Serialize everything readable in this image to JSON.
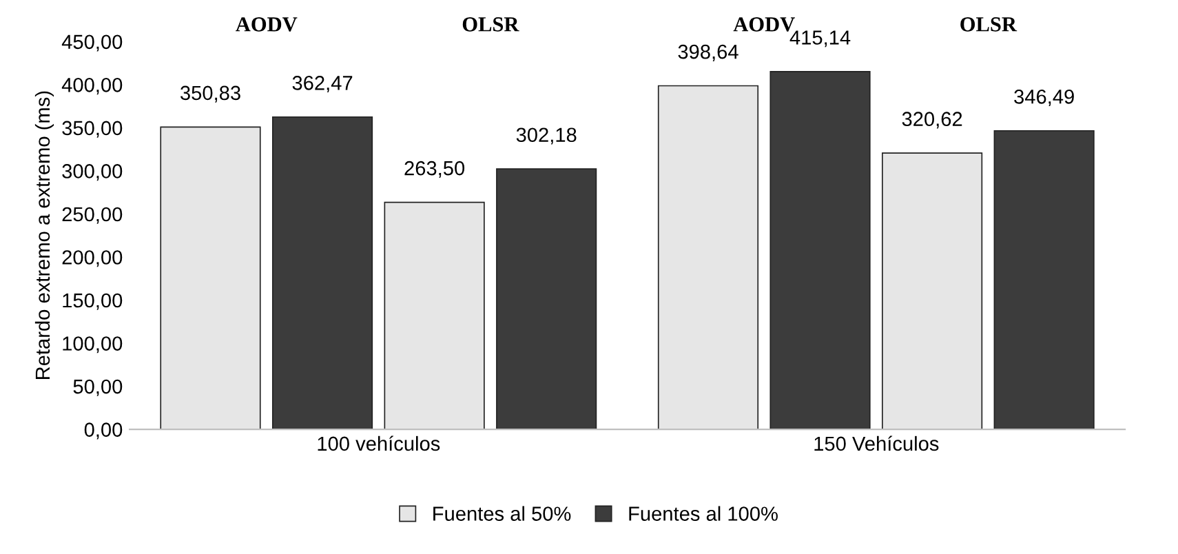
{
  "chart_data": {
    "type": "bar",
    "ylabel": "Retardo extremo a extremo (ms)",
    "categories": [
      "100 vehículos",
      "150 Vehículos"
    ],
    "series": [
      {
        "name": "Fuentes al 50%",
        "color": "#e6e6e6",
        "values": [
          350.83,
          398.64
        ],
        "value_labels": [
          "350,83",
          "398,64"
        ]
      },
      {
        "name": "Fuentes al 100%",
        "color": "#3c3c3c",
        "values": [
          362.47,
          415.14
        ],
        "value_labels": [
          "362,47",
          "415,14"
        ]
      },
      {
        "color": "#e6e6e6",
        "values": [
          263.5,
          320.62
        ],
        "value_labels": [
          "263,50",
          "320,62"
        ]
      },
      {
        "color": "#3c3c3c",
        "values": [
          302.18,
          346.49
        ],
        "value_labels": [
          "302,18",
          "346,49"
        ]
      }
    ],
    "ylim": [
      0,
      450
    ],
    "yticks": [
      {
        "value": 0,
        "label": "0,00"
      },
      {
        "value": 50,
        "label": "50,00"
      },
      {
        "value": 100,
        "label": "100,00"
      },
      {
        "value": 150,
        "label": "150,00"
      },
      {
        "value": 200,
        "label": "200,00"
      },
      {
        "value": 250,
        "label": "250,00"
      },
      {
        "value": 300,
        "label": "300,00"
      },
      {
        "value": 350,
        "label": "350,00"
      },
      {
        "value": 400,
        "label": "400,00"
      },
      {
        "value": 450,
        "label": "450,00"
      }
    ],
    "annotations": [
      "AODV",
      "OLSR",
      "AODV",
      "OLSR"
    ],
    "legend": "bottom"
  }
}
